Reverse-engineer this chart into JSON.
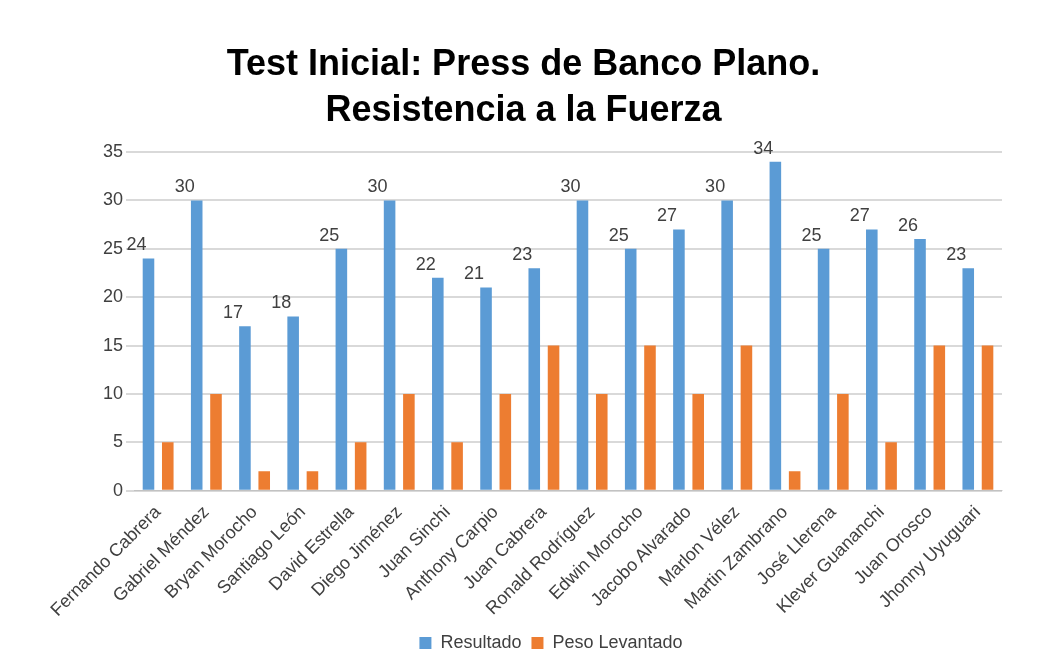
{
  "chart_data": {
    "type": "bar",
    "title": "Test Inicial: Press de Banco Plano. Resistencia a la Fuerza",
    "categories": [
      "Fernando Cabrera",
      "Gabriel Méndez",
      "Bryan Morocho",
      "Santiago León",
      "David Estrella",
      "Diego Jiménez",
      "Juan Sinchi",
      "Anthony Carpio",
      "Juan Cabrera",
      "Ronald Rodríguez",
      "Edwin Morocho",
      "Jacobo Alvarado",
      "Marlon Vélez",
      "Martin Zambrano",
      "José Llerena",
      "Klever Guananchi",
      "Juan Orosco",
      "Jhonny Uyuguari"
    ],
    "series": [
      {
        "name": "Resultado",
        "color": "#5b9bd5",
        "values": [
          24,
          30,
          17,
          18,
          25,
          30,
          22,
          21,
          23,
          30,
          25,
          27,
          30,
          34,
          25,
          27,
          26,
          23
        ],
        "value_labels": [
          "24",
          "30",
          "17",
          "18",
          "25",
          "30",
          "22",
          "21",
          "23",
          "30",
          "25",
          "27",
          "30",
          "34",
          "25",
          "27",
          "26",
          "23"
        ]
      },
      {
        "name": "Peso Levantado",
        "color": "#ed7d31",
        "values": [
          5,
          10,
          2,
          2,
          5,
          10,
          5,
          10,
          15,
          10,
          15,
          10,
          15,
          2,
          10,
          5,
          15,
          15
        ]
      }
    ],
    "ylim": [
      0,
      35
    ],
    "yticks": [
      0,
      5,
      10,
      15,
      20,
      25,
      30,
      35
    ],
    "grid": "y",
    "legend": "bottom"
  }
}
